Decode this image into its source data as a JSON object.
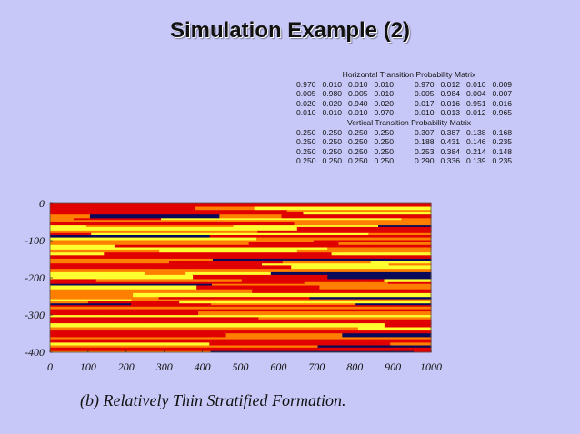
{
  "slide": {
    "title": "Simulation Example (2)",
    "caption": "(b) Relatively Thin Stratified Formation."
  },
  "matrices": [
    {
      "heading": "Horizontal Transition Probability Matrix",
      "rows": [
        [
          "0.970",
          "0.010",
          "0.010",
          "0.010",
          "0.970",
          "0.012",
          "0.010",
          "0.009"
        ],
        [
          "0.005",
          "0.980",
          "0.005",
          "0.010",
          "0.005",
          "0.984",
          "0.004",
          "0.007"
        ],
        [
          "0.020",
          "0.020",
          "0.940",
          "0.020",
          "0.017",
          "0.016",
          "0.951",
          "0.016"
        ],
        [
          "0.010",
          "0.010",
          "0.010",
          "0.970",
          "0.010",
          "0.013",
          "0.012",
          "0.965"
        ]
      ]
    },
    {
      "heading": "Vertical Transition Probability Matrix",
      "rows": [
        [
          "0.250",
          "0.250",
          "0.250",
          "0.250",
          "0.307",
          "0.387",
          "0.138",
          "0.168"
        ],
        [
          "0.250",
          "0.250",
          "0.250",
          "0.250",
          "0.188",
          "0.431",
          "0.146",
          "0.235"
        ],
        [
          "0.250",
          "0.250",
          "0.250",
          "0.250",
          "0.253",
          "0.384",
          "0.214",
          "0.148"
        ],
        [
          "0.250",
          "0.250",
          "0.250",
          "0.250",
          "0.290",
          "0.336",
          "0.139",
          "0.235"
        ]
      ]
    }
  ],
  "plot": {
    "x_ticks": [
      "0",
      "100",
      "200",
      "300",
      "400",
      "500",
      "600",
      "700",
      "800",
      "900",
      "1000"
    ],
    "y_ticks": [
      "0",
      "-100",
      "-200",
      "-300",
      "-400"
    ],
    "xlim": [
      0,
      1000
    ],
    "ylim": [
      -400,
      0
    ],
    "facies_colors": [
      "#0a0a5a",
      "#e00000",
      "#ff7f00",
      "#ffff30"
    ]
  }
}
